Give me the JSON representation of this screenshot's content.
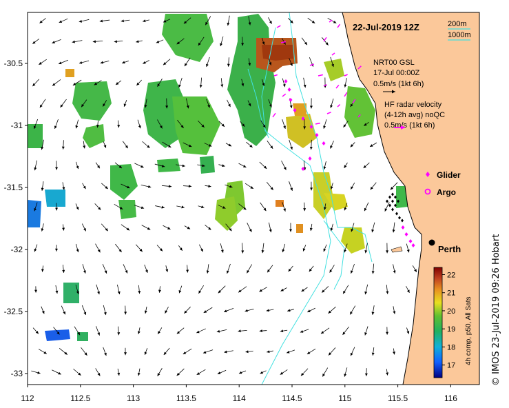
{
  "title": "22-Jul-2019 12Z",
  "contour_legend": {
    "line1": "200m",
    "line2": "1000m"
  },
  "model_label": {
    "line1": "NRT00 GSL",
    "line2": "17-Jul 00:00Z",
    "line3": "0.5m/s (1kt 6h)"
  },
  "radar_label": {
    "line1": "HF radar velocity",
    "line2": "(4-12h avg) noQC",
    "line3": "0.5m/s (1kt 6h)"
  },
  "legend": {
    "glider": "Glider",
    "argo": "Argo"
  },
  "city": "Perth",
  "colorbar": {
    "label": "4h comp, p50, All Sats",
    "ticks": [
      "22",
      "21",
      "20",
      "19",
      "18",
      "17"
    ],
    "min": 16.3,
    "max": 22.4
  },
  "axes": {
    "lon_ticks": [
      "112",
      "112.5",
      "113",
      "113.5",
      "114",
      "114.5",
      "115",
      "115.5",
      "116"
    ],
    "lat_ticks": [
      "-30.5",
      "-31",
      "-31.5",
      "-32",
      "-32.5",
      "-33"
    ]
  },
  "credit": "© IMOS 23-Jul-2019 09:26 Hobart",
  "colors": {
    "land": "#fbc89a",
    "contour": "#40e0e0",
    "radar_arrow": "#ff00ff",
    "glider": "#ff00ff"
  }
}
